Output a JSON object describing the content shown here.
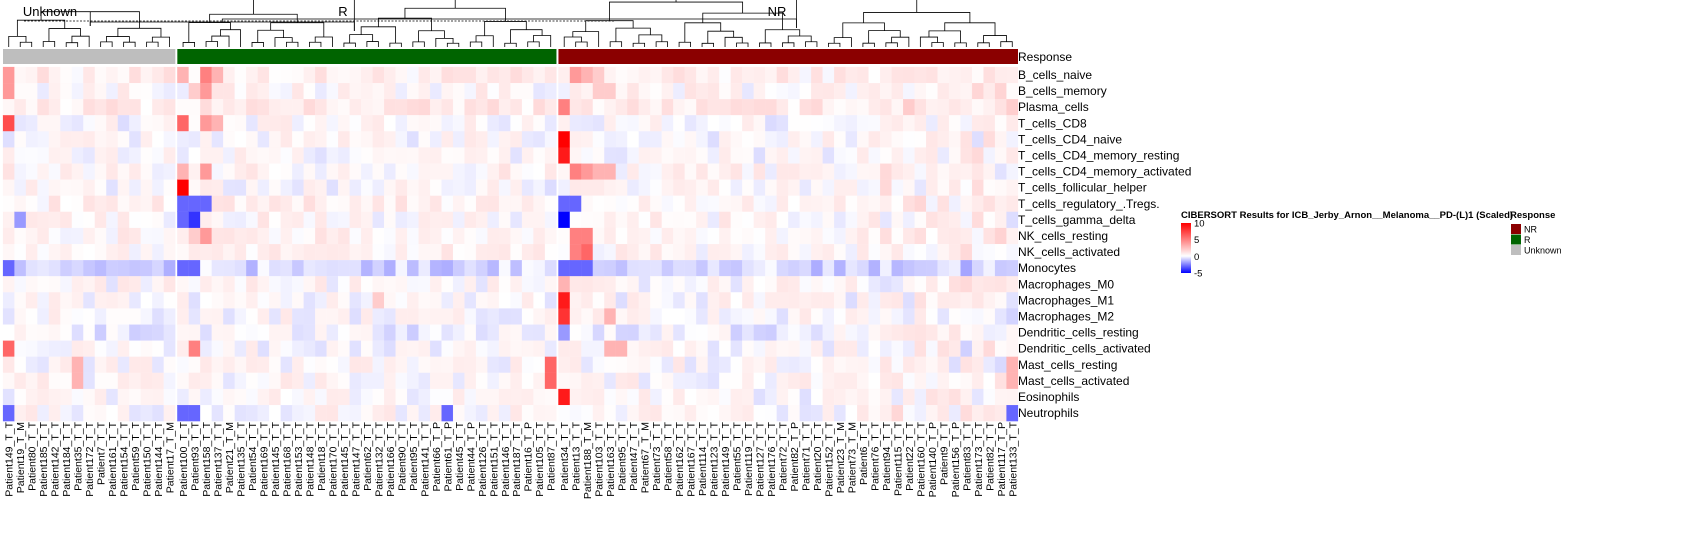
{
  "chart_data": {
    "type": "heatmap",
    "title": "CIBERSORT Results for ICB_Jerby_Arnon__Melanoma__PD-(L)1 (Scaled)",
    "annotation": {
      "name": "Response",
      "legend_title": "Response",
      "groups": [
        {
          "label": "Unknown",
          "count": 15,
          "color": "#BEBEBE"
        },
        {
          "label": "R",
          "count": 33,
          "color": "#006400"
        },
        {
          "label": "NR",
          "count": 40,
          "color": "#8B0000"
        }
      ],
      "legend_order": [
        "NR",
        "R",
        "Unknown"
      ]
    },
    "color_scale": {
      "low": "#0000FF",
      "mid": "#FFFFFF",
      "high": "#FF0000",
      "min": -5,
      "max": 10,
      "ticks": [
        10,
        5,
        0,
        -5
      ]
    },
    "rows": [
      "B_cells_naive",
      "B_cells_memory",
      "Plasma_cells",
      "T_cells_CD8",
      "T_cells_CD4_naive",
      "T_cells_CD4_memory_resting",
      "T_cells_CD4_memory_activated",
      "T_cells_follicular_helper",
      "T_cells_regulatory_.Tregs.",
      "T_cells_gamma_delta",
      "NK_cells_resting",
      "NK_cells_activated",
      "Monocytes",
      "Macrophages_M0",
      "Macrophages_M1",
      "Macrophages_M2",
      "Dendritic_cells_resting",
      "Dendritic_cells_activated",
      "Mast_cells_resting",
      "Mast_cells_activated",
      "Eosinophils",
      "Neutrophils"
    ],
    "columns": [
      "Patient149_T_T",
      "Patient19_T_M",
      "Patient80_T_T",
      "Patient185_T_T",
      "Patient142_T_T",
      "Patient184_T_T",
      "Patient35_T_T",
      "Patient172_T_T",
      "Patient7_T_T",
      "Patient161_T_T",
      "Patient154_T_T",
      "Patient59_T_T",
      "Patient150_T_T",
      "Patient144_T_T",
      "Patient17_T_M",
      "Patient100_T_T",
      "Patient93_T_T",
      "Patient158_T_T",
      "Patient137_T_T",
      "Patient21_T_M",
      "Patient135_T_T",
      "Patient54_T_T",
      "Patient169_T_T",
      "Patient145_T_T",
      "Patient168_T_T",
      "Patient153_T_T",
      "Patient148_T_T",
      "Patient18_T_T",
      "Patient170_T_T",
      "Patient145_T_T",
      "Patient147_T_T",
      "Patient62_T_T",
      "Patient132_T_T",
      "Patient166_T_T",
      "Patient90_T_T",
      "Patient95_T_T",
      "Patient141_T_T",
      "Patient66_T_P",
      "Patient61_T_P",
      "Patient45_T_T",
      "Patient44_T_P",
      "Patient126_T_T",
      "Patient151_T_T",
      "Patient146_T_T",
      "Patient187_T_T",
      "Patient16_T_P",
      "Patient105_T_T",
      "Patient87_T_T",
      "Patient34_T_T",
      "Patient13_T_T",
      "Patient188_T_M",
      "Patient103_T_T",
      "Patient163_T_T",
      "Patient95_T_T",
      "Patient47_T_T",
      "Patient67_T_M",
      "Patient73_T_T",
      "Patient58_T_T",
      "Patient162_T_T",
      "Patient167_T_T",
      "Patient114_T_T",
      "Patient123_T_T",
      "Patient149_T_T",
      "Patient55_T_T",
      "Patient119_T_T",
      "Patient127_T_T",
      "Patient176_T_T",
      "Patient72_T_T",
      "Patient82_T_P",
      "Patient71_T_T",
      "Patient20_T_T",
      "Patient152_T_T",
      "Patient23_T_M",
      "Patient73_T_M",
      "Patient6_T_T",
      "Patient76_T_T",
      "Patient94_T_T",
      "Patient115_T_T",
      "Patient22_T_T",
      "Patient160_T_T",
      "Patient140_T_P",
      "Patient9_T_T",
      "Patient156_T_P",
      "Patient83_T_T",
      "Patient173_T_T",
      "Patient82_T_T",
      "Patient117_T_P",
      "Patient133_T_T"
    ],
    "dendrogram": {
      "subclusters": [
        {
          "group": 0,
          "leaf_range": [
            0,
            14
          ]
        },
        {
          "group": 1,
          "leaf_range": [
            15,
            47
          ]
        },
        {
          "group": 2,
          "leaf_range": [
            48,
            87
          ]
        }
      ]
    },
    "values": "values are generated per row by the seeded template below (approximate reading, scaled -5..10)",
    "features": [
      {
        "row": 0,
        "base": 0.6,
        "hot": {
          "0": 4,
          "15": 3,
          "17": 5,
          "18": 3,
          "49": 4,
          "50": 3,
          "51": 2
        }
      },
      {
        "row": 1,
        "base": 0.3,
        "hot": {
          "0": 4,
          "16": 2,
          "17": 4,
          "51": 2,
          "52": 2
        }
      },
      {
        "row": 2,
        "base": 0.8,
        "hot": {
          "48": 5,
          "78": 2
        }
      },
      {
        "row": 3,
        "base": 0.1,
        "hot": {
          "0": 7,
          "15": 6,
          "17": 4,
          "18": 3
        }
      },
      {
        "row": 4,
        "base": 0.1,
        "hot": {
          "48": 10
        }
      },
      {
        "row": 5,
        "base": 0.1,
        "hot": {
          "48": 9
        }
      },
      {
        "row": 6,
        "base": 0.4,
        "hot": {
          "15": 3,
          "17": 4,
          "49": 5,
          "50": 4,
          "51": 3,
          "52": 3
        }
      },
      {
        "row": 7,
        "base": 0.1,
        "hot": {
          "15": 10
        }
      },
      {
        "row": 8,
        "base": 0.5,
        "cold": {
          "15": -3,
          "16": -3,
          "17": -3,
          "48": -3,
          "49": -3
        }
      },
      {
        "row": 9,
        "base": 0.3,
        "cold": {
          "48": -5,
          "15": -3,
          "16": -4,
          "1": -2
        }
      },
      {
        "row": 10,
        "base": 0.4,
        "hot": {
          "49": 5,
          "50": 5,
          "16": 2,
          "17": 4
        }
      },
      {
        "row": 11,
        "base": 0.3,
        "hot": {
          "49": 5,
          "50": 6
        }
      },
      {
        "row": 12,
        "base": -0.8,
        "cold": {
          "0": -3,
          "15": -3,
          "16": -3,
          "48": -3,
          "49": -3,
          "50": -3
        }
      },
      {
        "row": 13,
        "base": 0.2,
        "hot": {
          "48": 3
        }
      },
      {
        "row": 14,
        "base": 0.1,
        "hot": {
          "48": 9,
          "32": 2
        }
      },
      {
        "row": 15,
        "base": 0.1,
        "hot": {
          "48": 8,
          "52": 3
        }
      },
      {
        "row": 16,
        "base": -0.2,
        "cold": {
          "48": -2
        }
      },
      {
        "row": 17,
        "base": 0.1,
        "hot": {
          "0": 6,
          "16": 5,
          "52": 3,
          "53": 3
        }
      },
      {
        "row": 18,
        "base": 0.2,
        "hot": {
          "47": 6,
          "6": 3,
          "87": 3
        }
      },
      {
        "row": 19,
        "base": 0.2,
        "hot": {
          "47": 6,
          "6": 3,
          "87": 3
        }
      },
      {
        "row": 20,
        "base": 0.1,
        "hot": {
          "48": 9
        }
      },
      {
        "row": 21,
        "base": 0.2,
        "cold": {
          "0": -3,
          "15": -3,
          "16": -3,
          "38": -3,
          "87": -3
        }
      }
    ]
  }
}
